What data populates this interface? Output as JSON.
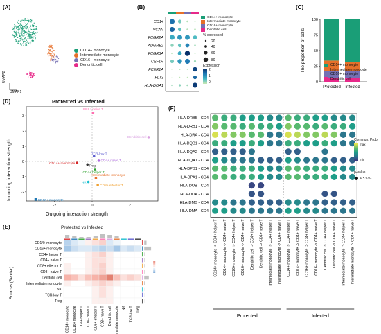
{
  "panels": {
    "a": "(A)",
    "b": "(B)",
    "c": "(C)",
    "d": "(D)",
    "e": "(E)",
    "f": "(F)"
  },
  "colors": {
    "cd14": "#1a9e77",
    "intermediate": "#e6702a",
    "cd16": "#7570b3",
    "dendritic": "#e7298a"
  },
  "umap": {
    "xlabel": "UMAP1",
    "ylabel": "UMAP2",
    "legend": [
      "CD14+ monocyte",
      "Intermediate monocyte",
      "CD16+ monocyte",
      "Dendritic cell"
    ]
  },
  "dotplot_b": {
    "genes": [
      "CD14",
      "VCAN",
      "FCGR2A",
      "ADGRE2",
      "FCGR3A",
      "CSF1R",
      "FCER1A",
      "FLT3",
      "HLA-DQA1"
    ],
    "legend": [
      "CD14+ monocyte",
      "Intermediate monocyte",
      "CD16+ monocyte",
      "Dendritic cell"
    ],
    "pct_title": "% expressed",
    "pct_values": [
      "20",
      "40",
      "60",
      "80"
    ],
    "expr_title": "Expression",
    "expr_ticks": [
      "2",
      "1",
      "0"
    ]
  },
  "chart_data": [
    {
      "type": "bar",
      "stacked": true,
      "categories": [
        "Protected",
        "Infected"
      ],
      "ylabel": "The proportion of cells",
      "ylim": [
        0,
        100
      ],
      "yticks": [
        "0",
        "25",
        "50",
        "75",
        "100"
      ],
      "series": [
        {
          "name": "Dendritic cell",
          "values": [
            6,
            6
          ]
        },
        {
          "name": "CD16+ monocyte",
          "values": [
            11,
            11
          ]
        },
        {
          "name": "Intermediate monocyte",
          "values": [
            17,
            15
          ]
        },
        {
          "name": "CD14+ monocyte",
          "values": [
            66,
            68
          ]
        }
      ]
    },
    {
      "type": "scatter",
      "title": "Protected vs Infected",
      "xlabel": "Outgoing interaction strength",
      "ylabel": "Incoming interaction strength",
      "xlim": [
        -3.5,
        3.5
      ],
      "ylim": [
        -2.6,
        3.6
      ],
      "xticks": [
        "-2",
        "0",
        "2"
      ],
      "yticks": [
        "-2",
        "-1",
        "0",
        "1",
        "2",
        "3"
      ],
      "points": [
        {
          "label": "CD8+ naive T",
          "x": 0.05,
          "y": 3.2,
          "color": "#ff6fb0"
        },
        {
          "label": "Dendritic cell",
          "x": 3.0,
          "y": 1.6,
          "color": "#d9a0e0"
        },
        {
          "label": "TCR-low T",
          "x": 0.1,
          "y": 0.35,
          "color": "#5f5fd0"
        },
        {
          "label": "CD4+ naive T",
          "x": 0.35,
          "y": 0.05,
          "color": "#b06fe0"
        },
        {
          "label": "CD14+ monocyte",
          "x": -0.8,
          "y": -0.1,
          "color": "#d62728"
        },
        {
          "label": "Treg",
          "x": -0.25,
          "y": -0.2,
          "color": "#333333"
        },
        {
          "label": "CD4+ helper T",
          "x": 0.15,
          "y": -0.55,
          "color": "#2ca02c"
        },
        {
          "label": "Intermediate monocyte",
          "x": 0.2,
          "y": -1.1,
          "color": "#e6702a"
        },
        {
          "label": "NK",
          "x": -0.2,
          "y": -1.35,
          "color": "#17becf"
        },
        {
          "label": "CD8+ effector T",
          "x": 0.3,
          "y": -1.55,
          "color": "#f0a030"
        },
        {
          "label": "CD16+ monocyte",
          "x": -3.0,
          "y": -2.5,
          "color": "#1f77b4"
        }
      ]
    },
    {
      "type": "heatmap",
      "title": "Protected vs Infected",
      "ylabel": "Sources (Sender)",
      "rows": [
        "CD14+ monocyte",
        "CD16+ monocyte",
        "CD4+ helper T",
        "CD4+ naive T",
        "CD8+ effector T",
        "CD8+ naive T",
        "Dendritic cell",
        "Intermediate monocyte",
        "NK",
        "TCR-low T",
        "Treg"
      ],
      "cols": [
        "CD14+ monocyte",
        "CD16+ monocyte",
        "CD4+ helper T",
        "CD4+ naive T",
        "CD8+ effector T",
        "CD8+ naive T",
        "Dendritic cell",
        "Intermediate monocyte",
        "NK",
        "TCR-low T",
        "Treg"
      ],
      "values": [
        [
          -0.4,
          -0.2,
          -0.1,
          0.1,
          0.2,
          0.3,
          -0.2,
          -0.1,
          0.0,
          0.0,
          0.0
        ],
        [
          -0.5,
          -0.3,
          -0.2,
          -0.2,
          -0.3,
          -0.4,
          -0.3,
          -0.5,
          -0.2,
          -0.3,
          -0.2
        ],
        [
          0.0,
          0.0,
          0.0,
          0.1,
          0.2,
          0.3,
          0.1,
          0.0,
          0.0,
          0.0,
          0.0
        ],
        [
          0.0,
          0.0,
          0.0,
          0.1,
          0.2,
          0.2,
          0.1,
          0.0,
          0.0,
          0.0,
          0.0
        ],
        [
          0.1,
          0.0,
          0.0,
          0.1,
          0.2,
          0.3,
          0.1,
          0.0,
          0.0,
          0.0,
          0.0
        ],
        [
          0.1,
          0.0,
          0.0,
          0.1,
          0.2,
          0.3,
          0.1,
          0.0,
          0.0,
          0.0,
          0.0
        ],
        [
          0.5,
          0.4,
          0.2,
          0.4,
          0.5,
          0.6,
          0.8,
          0.4,
          0.2,
          0.3,
          0.2
        ],
        [
          0.1,
          0.0,
          0.0,
          0.1,
          0.2,
          0.3,
          0.2,
          0.1,
          0.0,
          0.0,
          0.0
        ],
        [
          0.0,
          0.0,
          0.0,
          0.0,
          0.1,
          0.2,
          0.1,
          0.0,
          0.0,
          0.0,
          0.0
        ],
        [
          0.0,
          0.0,
          0.0,
          0.0,
          0.1,
          0.2,
          0.1,
          0.0,
          0.0,
          0.0,
          0.0
        ],
        [
          0.0,
          0.0,
          0.0,
          0.0,
          0.1,
          0.1,
          0.1,
          0.0,
          0.0,
          0.0,
          0.0
        ]
      ],
      "row_bar": [
        0.3,
        0.9,
        0.05,
        0.05,
        0.05,
        0.05,
        0.6,
        0.1,
        0.02,
        0.02,
        0.02
      ],
      "col_bar": [
        0.5,
        0.4,
        0.2,
        0.2,
        0.3,
        0.6,
        0.5,
        0.3,
        0.1,
        0.1,
        0.1
      ]
    },
    {
      "type": "heatmap",
      "variant": "dotplot",
      "rows": [
        "HLA-DRB5 - CD4",
        "HLA-DRB1 - CD4",
        "HLA-DRA - CD4",
        "HLA-DQB1 - CD4",
        "HLA-DQA2 - CD4",
        "HLA-DQA1 - CD4",
        "HLA-DPB1 - CD4",
        "HLA-DPA1 - CD4",
        "HLA-DOB - CD4",
        "HLA-DOA - CD4",
        "HLA-DMB - CD4",
        "HLA-DMA - CD4"
      ],
      "cols": [
        "CD14+ monocyte -> CD4+ helper T",
        "CD14+ monocyte -> CD4+ naive T",
        "CD16+ monocyte -> CD4+ helper T",
        "CD16+ monocyte -> CD4+ naive T",
        "Dendritic cell -> CD4+ helper T",
        "Dendritic cell -> CD4+ naive T",
        "Intermediate monocyte -> CD4+ helper T",
        "Intermediate monocyte -> CD4+ naive T",
        "CD14+ monocyte -> CD4+ helper T",
        "CD14+ monocyte -> CD4+ naive T",
        "CD16+ monocyte -> CD4+ helper T",
        "CD16+ monocyte -> CD4+ naive T",
        "Dendritic cell -> CD4+ helper T",
        "Dendritic cell -> CD4+ naive T",
        "Intermediate monocyte -> CD4+ helper T",
        "Intermediate monocyte -> CD4+ naive T"
      ],
      "groups": [
        {
          "label": "Protected",
          "from": 0,
          "to": 7
        },
        {
          "label": "Infected",
          "from": 8,
          "to": 15
        }
      ],
      "values": [
        [
          0.7,
          0.6,
          0.6,
          0.5,
          0.5,
          0.5,
          0.4,
          0.4,
          0.7,
          0.6,
          0.6,
          0.5,
          0.5,
          0.4,
          0.4,
          0.4
        ],
        [
          0.8,
          0.7,
          0.7,
          0.6,
          0.7,
          0.6,
          0.6,
          0.5,
          0.8,
          0.7,
          0.7,
          0.6,
          0.7,
          0.6,
          0.6,
          0.5
        ],
        [
          0.95,
          0.9,
          0.8,
          0.8,
          0.7,
          0.7,
          0.3,
          0.3,
          0.95,
          0.9,
          0.8,
          0.8,
          0.9,
          0.8,
          0.3,
          0.3
        ],
        [
          0.6,
          0.6,
          0.5,
          0.5,
          0.6,
          0.5,
          0.3,
          0.3,
          0.6,
          0.6,
          0.5,
          0.5,
          0.6,
          0.5,
          0.3,
          0.3
        ],
        [
          0.2,
          0.2,
          0.2,
          0.2,
          0.3,
          null,
          null,
          null,
          0.2,
          0.2,
          null,
          null,
          0.3,
          null,
          null,
          null
        ],
        [
          0.5,
          0.4,
          0.3,
          0.3,
          0.3,
          0.2,
          0.2,
          0.2,
          0.5,
          0.4,
          0.3,
          0.3,
          0.3,
          0.2,
          0.2,
          0.2
        ],
        [
          0.7,
          0.7,
          0.6,
          0.6,
          0.6,
          0.5,
          0.4,
          0.4,
          0.7,
          0.7,
          0.6,
          0.6,
          0.6,
          0.5,
          0.4,
          0.4
        ],
        [
          0.7,
          0.7,
          0.6,
          0.6,
          0.6,
          0.5,
          0.4,
          0.4,
          0.7,
          0.7,
          0.6,
          0.6,
          0.6,
          0.5,
          0.4,
          0.4
        ],
        [
          null,
          null,
          null,
          null,
          0.1,
          0.1,
          null,
          null,
          null,
          null,
          null,
          null,
          null,
          null,
          null,
          null
        ],
        [
          null,
          null,
          null,
          null,
          0.15,
          0.15,
          null,
          null,
          null,
          null,
          null,
          null,
          0.15,
          0.15,
          null,
          null
        ],
        [
          0.4,
          0.4,
          0.3,
          0.3,
          0.2,
          0.2,
          0.2,
          0.2,
          0.4,
          0.4,
          0.3,
          0.3,
          0.2,
          0.2,
          0.2,
          0.2
        ],
        [
          0.5,
          0.5,
          0.4,
          0.4,
          0.3,
          0.3,
          0.3,
          0.3,
          0.5,
          0.5,
          0.4,
          0.4,
          0.3,
          0.3,
          0.3,
          0.3
        ]
      ],
      "legend_title": "Commun. Prob.",
      "legend_max": "max",
      "legend_min": "min",
      "pvalue_title": "p-value",
      "pvalue_label": "p < 0.01"
    }
  ]
}
